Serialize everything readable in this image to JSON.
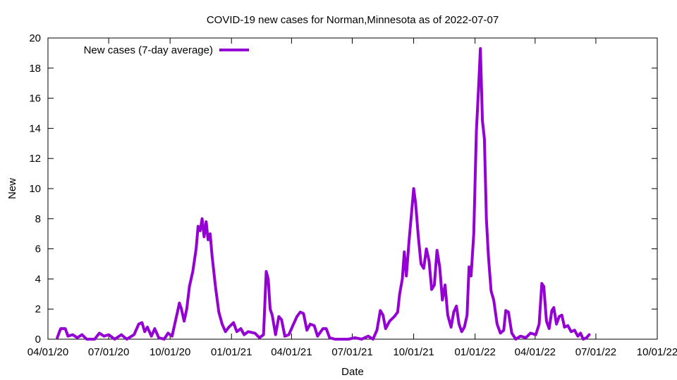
{
  "chart_data": {
    "type": "line",
    "title": "COVID-19 new cases for Norman,Minnesota as of 2022-07-07",
    "xlabel": "Date",
    "ylabel": "New",
    "xlim": [
      "2020-04-01",
      "2022-10-01"
    ],
    "ylim": [
      0,
      20
    ],
    "x_ticks": [
      {
        "date": "2020-04-01",
        "label": "04/01/20"
      },
      {
        "date": "2020-07-01",
        "label": "07/01/20"
      },
      {
        "date": "2020-10-01",
        "label": "10/01/20"
      },
      {
        "date": "2021-01-01",
        "label": "01/01/21"
      },
      {
        "date": "2021-04-01",
        "label": "04/01/21"
      },
      {
        "date": "2021-07-01",
        "label": "07/01/21"
      },
      {
        "date": "2021-10-01",
        "label": "10/01/21"
      },
      {
        "date": "2022-01-01",
        "label": "01/01/22"
      },
      {
        "date": "2022-04-01",
        "label": "04/01/22"
      },
      {
        "date": "2022-07-01",
        "label": "07/01/22"
      },
      {
        "date": "2022-10-01",
        "label": "10/01/22"
      }
    ],
    "y_ticks": [
      0,
      2,
      4,
      6,
      8,
      10,
      12,
      14,
      16,
      18,
      20
    ],
    "grid": false,
    "legend": {
      "position": "top-left"
    },
    "series": [
      {
        "name": "New cases (7-day average)",
        "color": "#9400d3",
        "points": [
          [
            "2020-04-15",
            0.1
          ],
          [
            "2020-04-20",
            0.7
          ],
          [
            "2020-04-27",
            0.7
          ],
          [
            "2020-05-01",
            0.2
          ],
          [
            "2020-05-08",
            0.3
          ],
          [
            "2020-05-15",
            0.1
          ],
          [
            "2020-05-22",
            0.3
          ],
          [
            "2020-05-29",
            0.0
          ],
          [
            "2020-06-10",
            0.0
          ],
          [
            "2020-06-17",
            0.4
          ],
          [
            "2020-06-24",
            0.2
          ],
          [
            "2020-07-01",
            0.3
          ],
          [
            "2020-07-10",
            0.0
          ],
          [
            "2020-07-20",
            0.3
          ],
          [
            "2020-07-28",
            0.0
          ],
          [
            "2020-08-08",
            0.3
          ],
          [
            "2020-08-15",
            1.0
          ],
          [
            "2020-08-20",
            1.1
          ],
          [
            "2020-08-24",
            0.5
          ],
          [
            "2020-08-28",
            0.8
          ],
          [
            "2020-09-03",
            0.2
          ],
          [
            "2020-09-08",
            0.7
          ],
          [
            "2020-09-14",
            0.1
          ],
          [
            "2020-09-22",
            0.0
          ],
          [
            "2020-09-28",
            0.4
          ],
          [
            "2020-10-04",
            0.2
          ],
          [
            "2020-10-08",
            1.0
          ],
          [
            "2020-10-12",
            1.8
          ],
          [
            "2020-10-15",
            2.4
          ],
          [
            "2020-10-18",
            2.0
          ],
          [
            "2020-10-22",
            1.2
          ],
          [
            "2020-10-26",
            2.0
          ],
          [
            "2020-10-30",
            3.5
          ],
          [
            "2020-11-04",
            4.5
          ],
          [
            "2020-11-09",
            6.0
          ],
          [
            "2020-11-12",
            7.5
          ],
          [
            "2020-11-15",
            7.2
          ],
          [
            "2020-11-18",
            8.0
          ],
          [
            "2020-11-21",
            6.8
          ],
          [
            "2020-11-24",
            7.8
          ],
          [
            "2020-11-27",
            6.6
          ],
          [
            "2020-11-30",
            7.0
          ],
          [
            "2020-12-03",
            5.5
          ],
          [
            "2020-12-08",
            3.5
          ],
          [
            "2020-12-13",
            1.8
          ],
          [
            "2020-12-18",
            1.0
          ],
          [
            "2020-12-23",
            0.5
          ],
          [
            "2020-12-28",
            0.8
          ],
          [
            "2021-01-04",
            1.1
          ],
          [
            "2021-01-09",
            0.5
          ],
          [
            "2021-01-15",
            0.7
          ],
          [
            "2021-01-20",
            0.3
          ],
          [
            "2021-01-26",
            0.5
          ],
          [
            "2021-02-05",
            0.4
          ],
          [
            "2021-02-12",
            0.1
          ],
          [
            "2021-02-18",
            0.3
          ],
          [
            "2021-02-22",
            4.5
          ],
          [
            "2021-02-25",
            4.0
          ],
          [
            "2021-02-28",
            2.0
          ],
          [
            "2021-03-03",
            1.6
          ],
          [
            "2021-03-08",
            0.3
          ],
          [
            "2021-03-13",
            1.5
          ],
          [
            "2021-03-17",
            1.3
          ],
          [
            "2021-03-22",
            0.2
          ],
          [
            "2021-03-28",
            0.3
          ],
          [
            "2021-04-04",
            1.0
          ],
          [
            "2021-04-09",
            1.5
          ],
          [
            "2021-04-14",
            1.8
          ],
          [
            "2021-04-19",
            1.7
          ],
          [
            "2021-04-24",
            0.6
          ],
          [
            "2021-04-29",
            1.0
          ],
          [
            "2021-05-05",
            0.9
          ],
          [
            "2021-05-10",
            0.2
          ],
          [
            "2021-05-18",
            0.7
          ],
          [
            "2021-05-23",
            0.7
          ],
          [
            "2021-05-28",
            0.1
          ],
          [
            "2021-06-05",
            0.0
          ],
          [
            "2021-06-25",
            0.0
          ],
          [
            "2021-07-05",
            0.1
          ],
          [
            "2021-07-15",
            0.0
          ],
          [
            "2021-07-25",
            0.2
          ],
          [
            "2021-08-01",
            0.0
          ],
          [
            "2021-08-07",
            0.6
          ],
          [
            "2021-08-12",
            1.9
          ],
          [
            "2021-08-16",
            1.6
          ],
          [
            "2021-08-20",
            0.7
          ],
          [
            "2021-08-26",
            1.2
          ],
          [
            "2021-09-02",
            1.5
          ],
          [
            "2021-09-07",
            1.8
          ],
          [
            "2021-09-10",
            3.0
          ],
          [
            "2021-09-14",
            4.0
          ],
          [
            "2021-09-17",
            5.8
          ],
          [
            "2021-09-20",
            4.2
          ],
          [
            "2021-09-24",
            6.5
          ],
          [
            "2021-09-28",
            8.5
          ],
          [
            "2021-10-01",
            10.0
          ],
          [
            "2021-10-04",
            9.0
          ],
          [
            "2021-10-08",
            6.8
          ],
          [
            "2021-10-12",
            5.0
          ],
          [
            "2021-10-16",
            4.7
          ],
          [
            "2021-10-20",
            6.0
          ],
          [
            "2021-10-24",
            5.2
          ],
          [
            "2021-10-28",
            3.3
          ],
          [
            "2021-11-01",
            3.6
          ],
          [
            "2021-11-05",
            5.9
          ],
          [
            "2021-11-09",
            4.8
          ],
          [
            "2021-11-13",
            2.6
          ],
          [
            "2021-11-17",
            3.6
          ],
          [
            "2021-11-21",
            1.6
          ],
          [
            "2021-11-26",
            0.8
          ],
          [
            "2021-11-30",
            1.8
          ],
          [
            "2021-12-04",
            2.2
          ],
          [
            "2021-12-08",
            1.0
          ],
          [
            "2021-12-12",
            0.5
          ],
          [
            "2021-12-16",
            0.8
          ],
          [
            "2021-12-20",
            1.6
          ],
          [
            "2021-12-23",
            4.8
          ],
          [
            "2021-12-26",
            4.2
          ],
          [
            "2021-12-30",
            7.0
          ],
          [
            "2022-01-03",
            13.8
          ],
          [
            "2022-01-06",
            16.5
          ],
          [
            "2022-01-09",
            19.3
          ],
          [
            "2022-01-12",
            14.5
          ],
          [
            "2022-01-15",
            13.3
          ],
          [
            "2022-01-18",
            8.0
          ],
          [
            "2022-01-21",
            5.5
          ],
          [
            "2022-01-25",
            3.2
          ],
          [
            "2022-01-29",
            2.6
          ],
          [
            "2022-02-03",
            1.0
          ],
          [
            "2022-02-08",
            0.4
          ],
          [
            "2022-02-13",
            0.6
          ],
          [
            "2022-02-16",
            1.9
          ],
          [
            "2022-02-20",
            1.8
          ],
          [
            "2022-02-25",
            0.4
          ],
          [
            "2022-03-03",
            0.0
          ],
          [
            "2022-03-10",
            0.2
          ],
          [
            "2022-03-18",
            0.1
          ],
          [
            "2022-03-25",
            0.4
          ],
          [
            "2022-04-02",
            0.3
          ],
          [
            "2022-04-07",
            1.0
          ],
          [
            "2022-04-11",
            3.7
          ],
          [
            "2022-04-14",
            3.5
          ],
          [
            "2022-04-18",
            1.2
          ],
          [
            "2022-04-22",
            0.7
          ],
          [
            "2022-04-26",
            1.9
          ],
          [
            "2022-04-29",
            2.1
          ],
          [
            "2022-05-03",
            1.0
          ],
          [
            "2022-05-07",
            1.5
          ],
          [
            "2022-05-11",
            1.6
          ],
          [
            "2022-05-15",
            0.8
          ],
          [
            "2022-05-20",
            0.9
          ],
          [
            "2022-05-25",
            0.5
          ],
          [
            "2022-05-30",
            0.6
          ],
          [
            "2022-06-04",
            0.2
          ],
          [
            "2022-06-08",
            0.4
          ],
          [
            "2022-06-12",
            0.0
          ],
          [
            "2022-06-17",
            0.1
          ],
          [
            "2022-06-21",
            0.3
          ]
        ]
      }
    ]
  }
}
